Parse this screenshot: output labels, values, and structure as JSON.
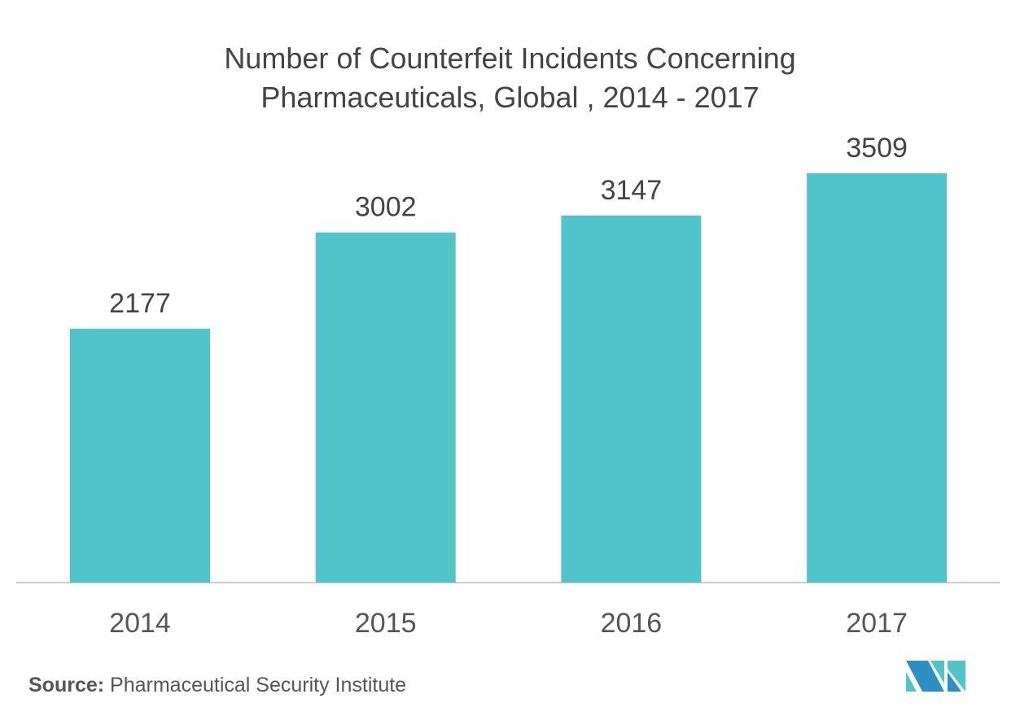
{
  "chart_data": {
    "type": "bar",
    "title_line1": "Number of Counterfeit Incidents Concerning",
    "title_line2": "Pharmaceuticals, Global , 2014 - 2017",
    "categories": [
      "2014",
      "2015",
      "2016",
      "2017"
    ],
    "values": [
      2177,
      3002,
      3147,
      3509
    ],
    "labels": [
      "2177",
      "3002",
      "3147",
      "3509"
    ],
    "xlabel": "",
    "ylabel": "",
    "ylim": [
      0,
      3509
    ],
    "grid": false,
    "bar_color": "#50c4ca"
  },
  "source": {
    "label": "Source:",
    "text": " Pharmaceutical Security Institute"
  }
}
